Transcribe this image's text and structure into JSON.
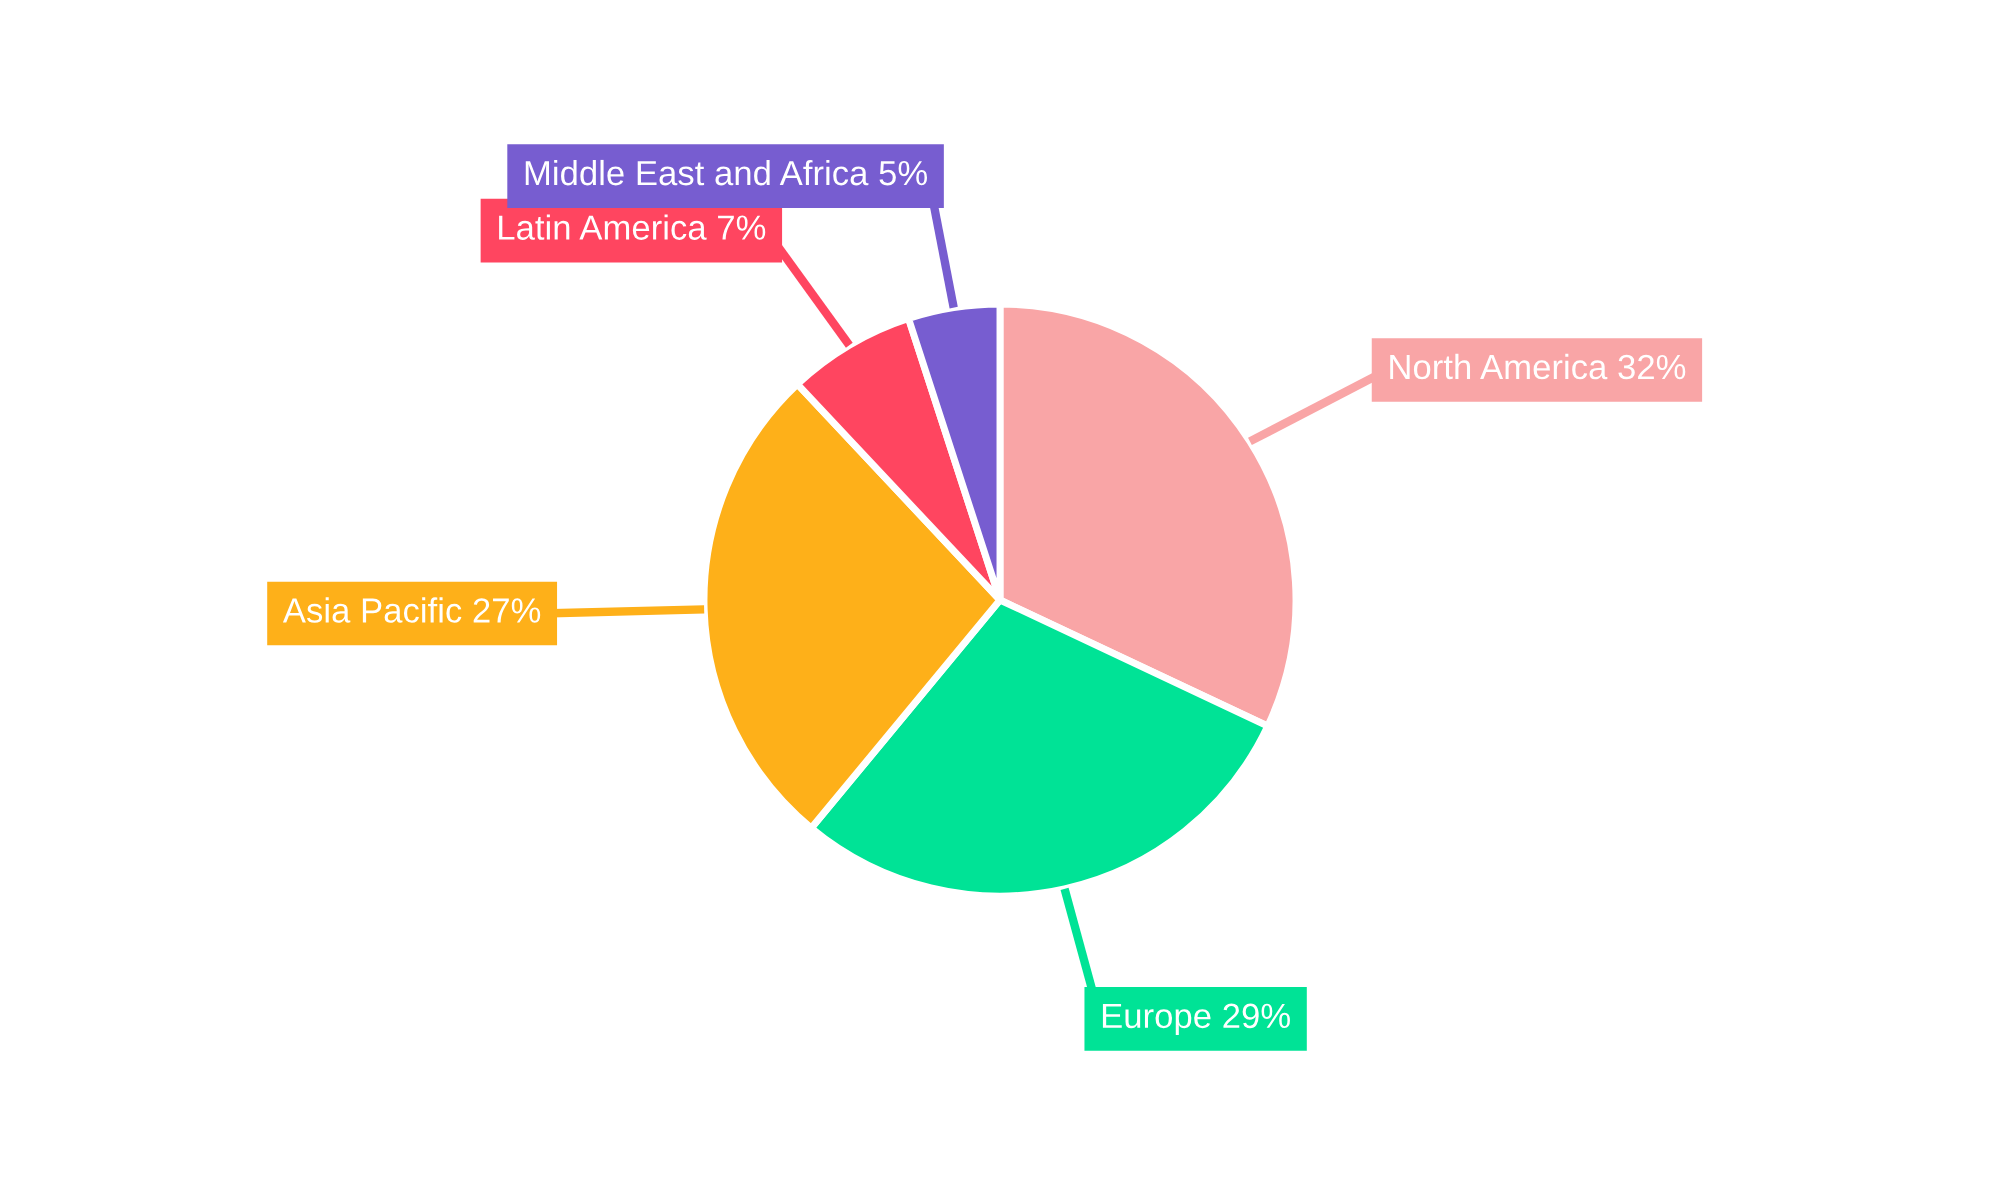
{
  "chart_data": {
    "type": "pie",
    "categories": [
      "North America",
      "Europe",
      "Asia Pacific",
      "Latin America",
      "Middle East and Africa"
    ],
    "values": [
      32,
      29,
      27,
      7,
      5
    ],
    "colors": [
      "#f9a5a6",
      "#00e396",
      "#feb019",
      "#ff4560",
      "#775dd0"
    ],
    "value_labels": [
      "32%",
      "29%",
      "27%",
      "7%",
      "5%"
    ],
    "legend": false
  }
}
